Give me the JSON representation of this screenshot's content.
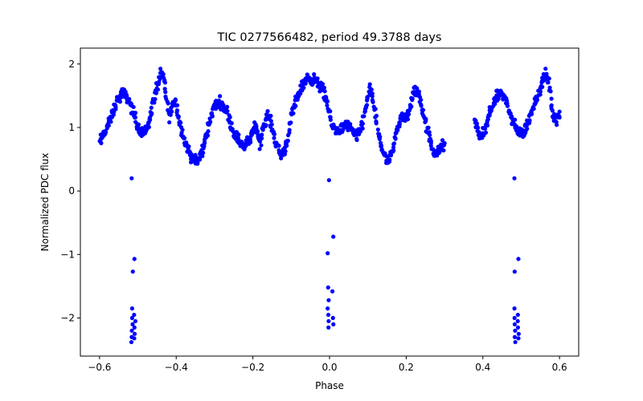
{
  "chart_data": {
    "type": "scatter",
    "title": "TIC 0277566482, period 49.3788 days",
    "xlabel": "Phase",
    "ylabel": "Normalized PDC flux",
    "xlim": [
      -0.65,
      0.65
    ],
    "ylim": [
      -2.6,
      2.25
    ],
    "xticks": [
      -0.6,
      -0.4,
      -0.2,
      0.0,
      0.2,
      0.4,
      0.6
    ],
    "xtick_labels": [
      "−0.6",
      "−0.4",
      "−0.2",
      "0.0",
      "0.2",
      "0.4",
      "0.6"
    ],
    "yticks": [
      -2,
      -1,
      0,
      1,
      2
    ],
    "ytick_labels": [
      "−2",
      "−1",
      "0",
      "1",
      "2"
    ],
    "grid": false,
    "point_color": "#0000ff",
    "series": [
      {
        "curve": [
          [
            -0.6,
            0.75
          ],
          [
            -0.585,
            0.95
          ],
          [
            -0.57,
            1.15
          ],
          [
            -0.555,
            1.4
          ],
          [
            -0.54,
            1.55
          ],
          [
            -0.525,
            1.45
          ],
          [
            -0.51,
            1.2
          ],
          [
            -0.498,
            1.0
          ],
          [
            -0.485,
            0.9
          ],
          [
            -0.472,
            1.05
          ],
          [
            -0.462,
            1.35
          ],
          [
            -0.452,
            1.6
          ],
          [
            -0.44,
            1.85
          ],
          [
            -0.432,
            1.75
          ],
          [
            -0.425,
            1.45
          ],
          [
            -0.418,
            1.15
          ],
          [
            -0.41,
            1.35
          ],
          [
            -0.402,
            1.45
          ],
          [
            -0.392,
            1.1
          ],
          [
            -0.378,
            0.8
          ],
          [
            -0.362,
            0.55
          ],
          [
            -0.345,
            0.45
          ],
          [
            -0.33,
            0.65
          ],
          [
            -0.315,
            1.05
          ],
          [
            -0.3,
            1.35
          ],
          [
            -0.285,
            1.4
          ],
          [
            -0.268,
            1.25
          ],
          [
            -0.252,
            0.95
          ],
          [
            -0.238,
            0.8
          ],
          [
            -0.222,
            0.7
          ],
          [
            -0.205,
            0.85
          ],
          [
            -0.192,
            1.05
          ],
          [
            -0.182,
            0.75
          ],
          [
            -0.172,
            1.0
          ],
          [
            -0.16,
            1.2
          ],
          [
            -0.15,
            1.0
          ],
          [
            -0.138,
            0.72
          ],
          [
            -0.125,
            0.55
          ],
          [
            -0.112,
            0.75
          ],
          [
            -0.098,
            1.2
          ],
          [
            -0.08,
            1.55
          ],
          [
            -0.06,
            1.78
          ],
          [
            -0.04,
            1.75
          ],
          [
            -0.02,
            1.62
          ],
          [
            -0.008,
            1.45
          ],
          [
            0.005,
            1.05
          ],
          [
            0.018,
            0.95
          ],
          [
            0.032,
            0.98
          ],
          [
            0.045,
            1.05
          ],
          [
            0.058,
            0.95
          ],
          [
            0.072,
            0.85
          ],
          [
            0.085,
            1.05
          ],
          [
            0.095,
            1.35
          ],
          [
            0.105,
            1.6
          ],
          [
            0.115,
            1.4
          ],
          [
            0.125,
            0.95
          ],
          [
            0.138,
            0.65
          ],
          [
            0.15,
            0.45
          ],
          [
            0.162,
            0.55
          ],
          [
            0.175,
            0.95
          ],
          [
            0.188,
            1.2
          ],
          [
            0.2,
            1.1
          ],
          [
            0.212,
            1.35
          ],
          [
            0.222,
            1.6
          ],
          [
            0.235,
            1.5
          ],
          [
            0.248,
            1.15
          ],
          [
            0.26,
            0.85
          ],
          [
            0.272,
            0.6
          ],
          [
            0.285,
            0.62
          ],
          [
            0.3,
            0.75
          ]
        ],
        "curve2": [
          [
            0.38,
            1.1
          ],
          [
            0.392,
            0.85
          ],
          [
            0.405,
            0.95
          ],
          [
            0.418,
            1.25
          ],
          [
            0.432,
            1.45
          ],
          [
            0.448,
            1.55
          ],
          [
            0.462,
            1.4
          ],
          [
            0.476,
            1.1
          ],
          [
            0.49,
            0.95
          ],
          [
            0.505,
            0.9
          ],
          [
            0.52,
            1.1
          ],
          [
            0.535,
            1.4
          ],
          [
            0.55,
            1.6
          ],
          [
            0.562,
            1.85
          ],
          [
            0.572,
            1.7
          ],
          [
            0.582,
            1.25
          ],
          [
            0.59,
            1.05
          ],
          [
            0.6,
            1.25
          ]
        ],
        "dips": [
          {
            "center": -0.515,
            "values": [
              0.2,
              -1.27,
              -1.85,
              -2.0,
              -2.1,
              -2.2,
              -2.3,
              -2.38
            ]
          },
          {
            "center": -0.508,
            "values": [
              -1.07,
              -1.95,
              -2.05,
              -2.15,
              -2.25,
              -2.32
            ]
          },
          {
            "center": -0.003,
            "values": [
              0.17,
              -0.98,
              -1.52,
              -1.72,
              -1.85,
              -1.95,
              -2.05,
              -2.15
            ]
          },
          {
            "center": 0.008,
            "values": [
              -0.72,
              -1.58,
              -2.0,
              -2.1
            ]
          },
          {
            "center": 0.484,
            "values": [
              0.2,
              -1.27,
              -1.85,
              -2.0,
              -2.1,
              -2.2,
              -2.3,
              -2.38
            ]
          },
          {
            "center": 0.492,
            "values": [
              -1.07,
              -1.95,
              -2.05,
              -2.15,
              -2.25,
              -2.32
            ]
          }
        ]
      }
    ]
  }
}
